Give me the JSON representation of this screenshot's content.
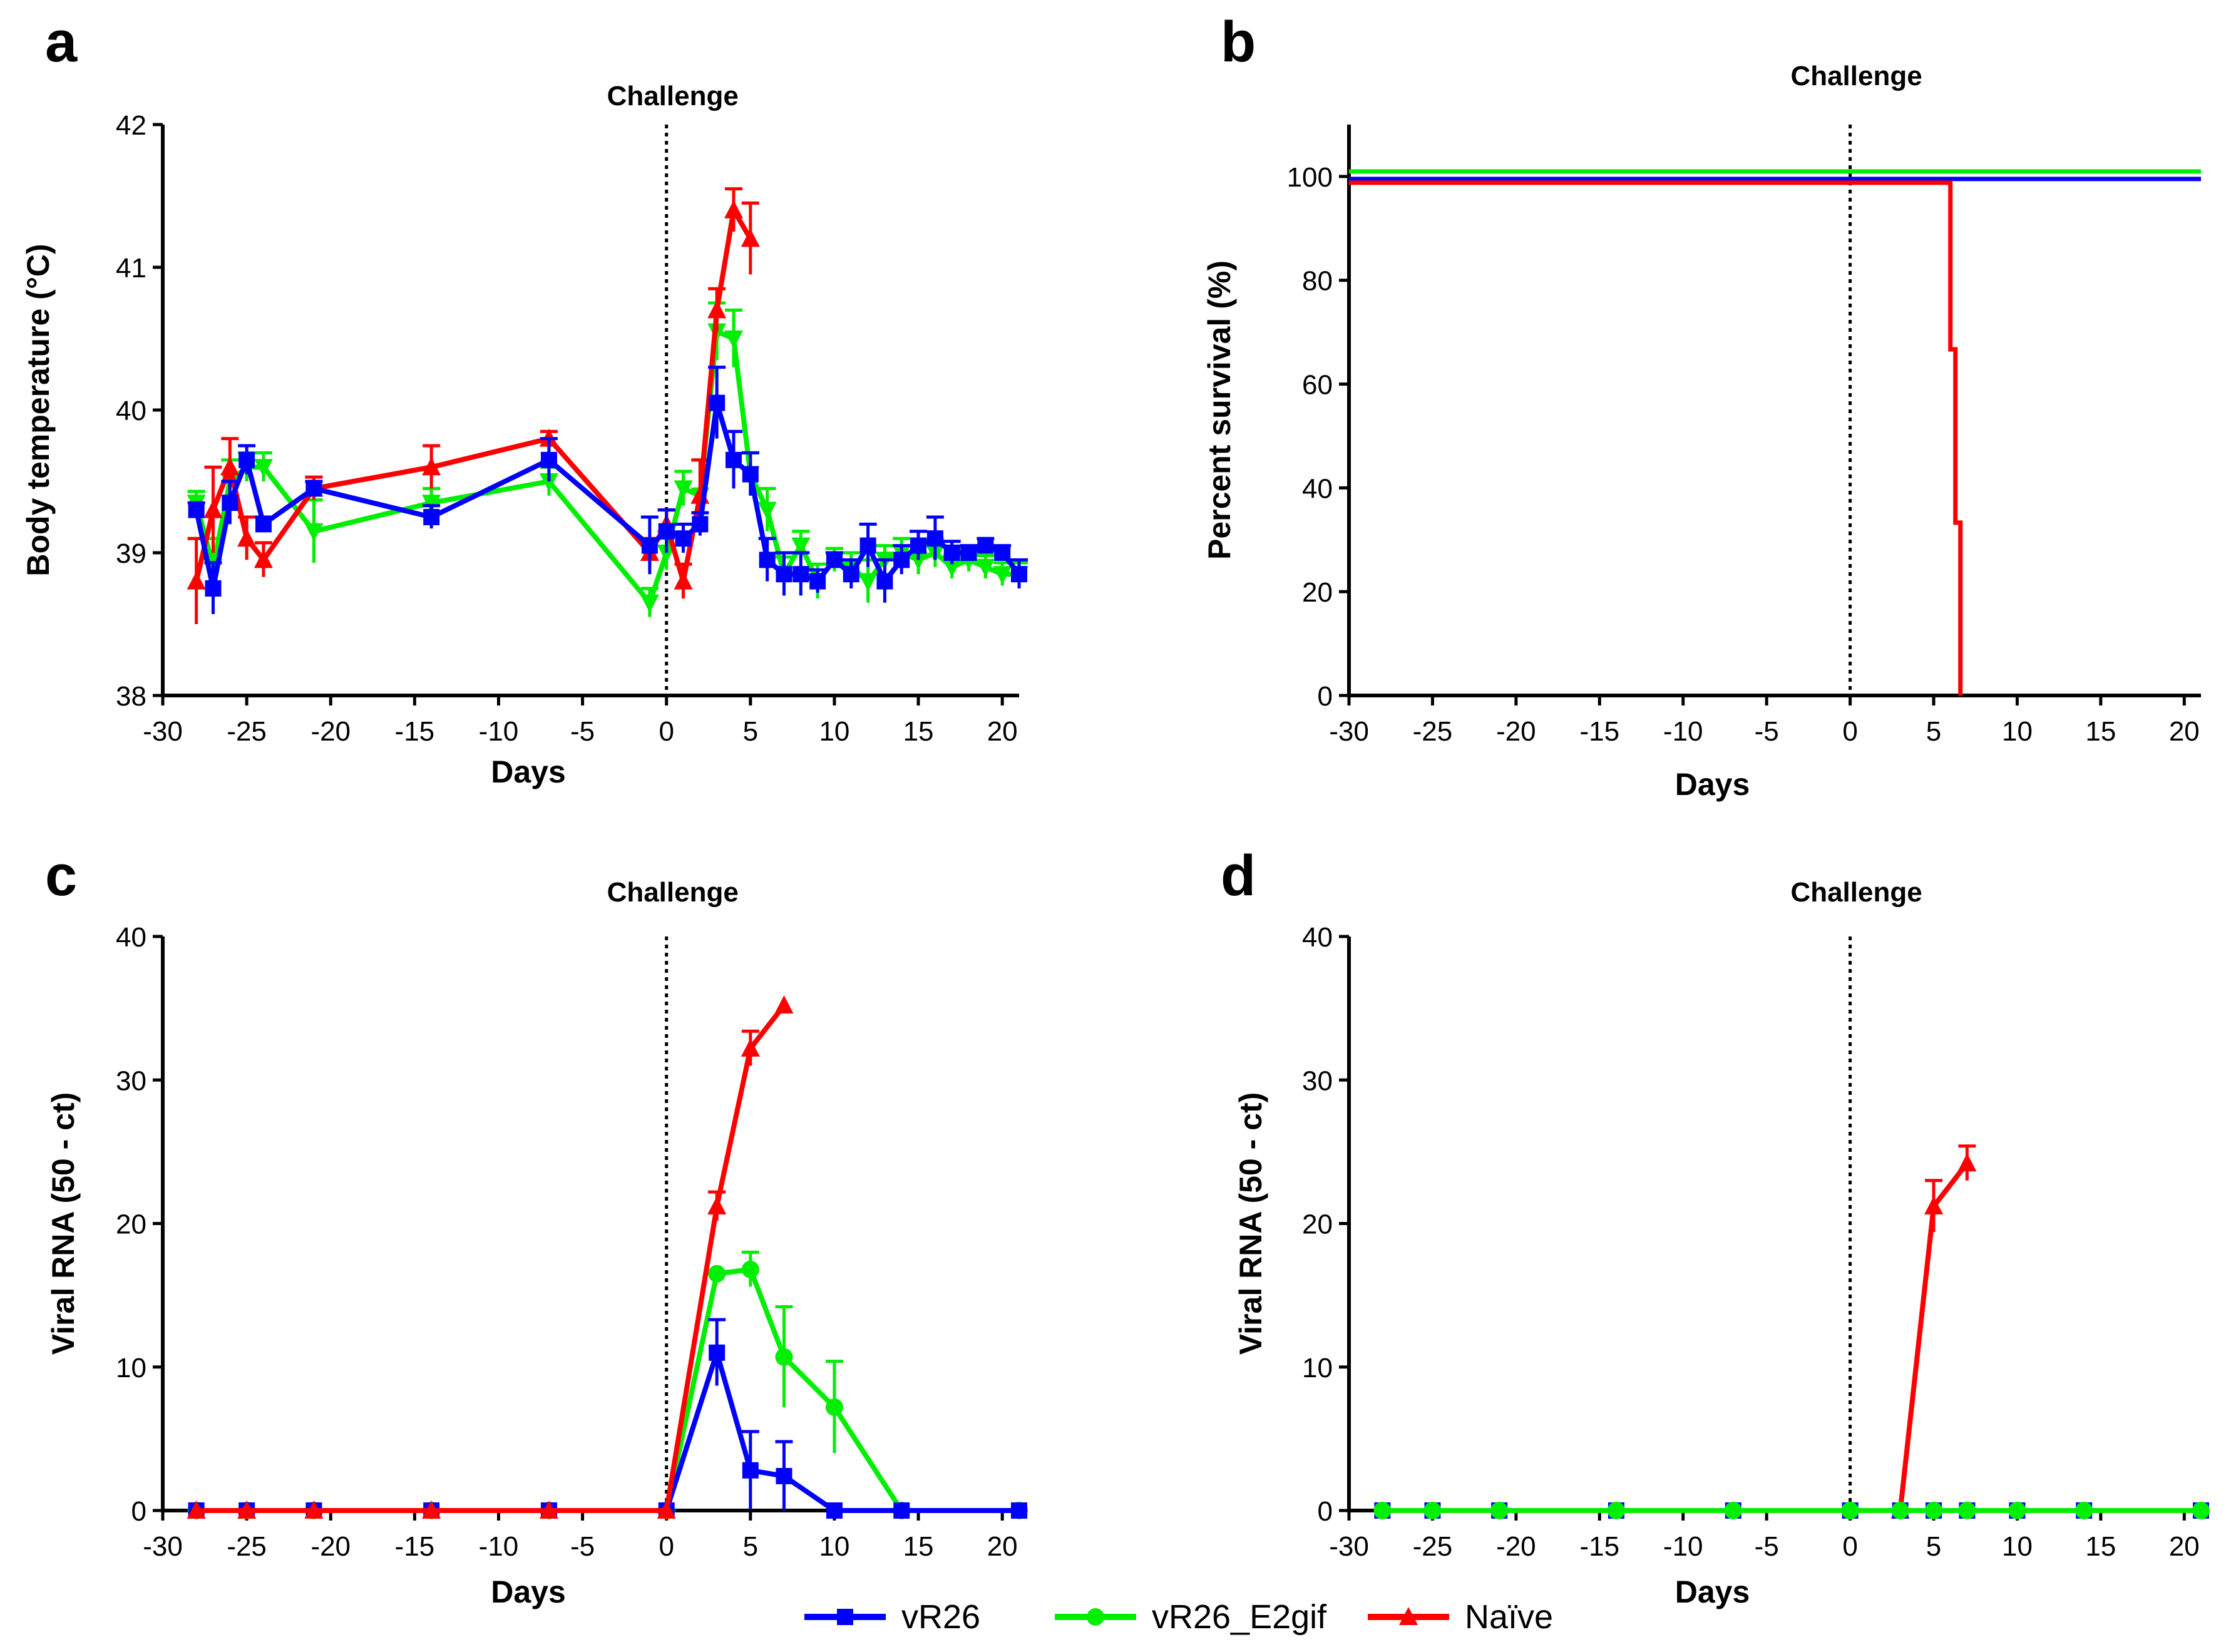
{
  "colors": {
    "vR26": "#0000ff",
    "vR26_E2gif": "#00ee00",
    "Naive": "#ff0000",
    "axis": "#000000"
  },
  "legend": {
    "entries": [
      {
        "key": "vR26",
        "label": "vR26",
        "marker": "square"
      },
      {
        "key": "vR26_E2gif",
        "label": "vR26_E2gif",
        "marker": "circle"
      },
      {
        "key": "Naive",
        "label": "Naïve",
        "marker": "triangle"
      }
    ]
  },
  "chart_data": [
    {
      "id": "a",
      "panel_label": "a",
      "type": "line",
      "title": "",
      "annotation": "Challenge",
      "annotation_x": 0,
      "xlabel": "Days",
      "ylabel": "Body temperature (°C)",
      "xlim": [
        -30,
        21
      ],
      "ylim": [
        38,
        42
      ],
      "xticks": [
        -30,
        -25,
        -20,
        -15,
        -10,
        -5,
        0,
        5,
        10,
        15,
        20
      ],
      "yticks": [
        38,
        39,
        40,
        41,
        42
      ],
      "series": [
        {
          "name": "vR26_E2gif",
          "marker": "inv-triangle",
          "points": [
            {
              "x": -28,
              "y": 39.35,
              "err": 0.08
            },
            {
              "x": -27,
              "y": 38.9,
              "err": 0.2
            },
            {
              "x": -26,
              "y": 39.5,
              "err": 0.15
            },
            {
              "x": -25,
              "y": 39.6,
              "err": 0.1
            },
            {
              "x": -24,
              "y": 39.6,
              "err": 0.1
            },
            {
              "x": -21,
              "y": 39.15,
              "err": 0.22
            },
            {
              "x": -14,
              "y": 39.35,
              "err": 0.1
            },
            {
              "x": -7,
              "y": 39.5,
              "err": 0.1
            },
            {
              "x": -1,
              "y": 38.65,
              "err": 0.1
            },
            {
              "x": 0,
              "y": 39.0,
              "err": 0.12
            },
            {
              "x": 1,
              "y": 39.45,
              "err": 0.12
            },
            {
              "x": 2,
              "y": 39.4,
              "err": 0.25
            },
            {
              "x": 3,
              "y": 40.55,
              "err": 0.2
            },
            {
              "x": 4,
              "y": 40.5,
              "err": 0.2
            },
            {
              "x": 5,
              "y": 39.55,
              "err": 0.15
            },
            {
              "x": 6,
              "y": 39.3,
              "err": 0.15
            },
            {
              "x": 7,
              "y": 38.85,
              "err": 0.12
            },
            {
              "x": 8,
              "y": 39.05,
              "err": 0.1
            },
            {
              "x": 9,
              "y": 38.8,
              "err": 0.12
            },
            {
              "x": 10,
              "y": 38.95,
              "err": 0.08
            },
            {
              "x": 11,
              "y": 38.9,
              "err": 0.1
            },
            {
              "x": 12,
              "y": 38.8,
              "err": 0.15
            },
            {
              "x": 13,
              "y": 38.95,
              "err": 0.1
            },
            {
              "x": 14,
              "y": 39.0,
              "err": 0.1
            },
            {
              "x": 15,
              "y": 38.95,
              "err": 0.1
            },
            {
              "x": 16,
              "y": 39.0,
              "err": 0.1
            },
            {
              "x": 17,
              "y": 38.9,
              "err": 0.08
            },
            {
              "x": 18,
              "y": 38.95,
              "err": 0.08
            },
            {
              "x": 19,
              "y": 38.9,
              "err": 0.08
            },
            {
              "x": 20,
              "y": 38.85,
              "err": 0.08
            },
            {
              "x": 21,
              "y": 38.85,
              "err": 0.08
            }
          ]
        },
        {
          "name": "Naive",
          "marker": "triangle",
          "points": [
            {
              "x": -28,
              "y": 38.8,
              "err": 0.3
            },
            {
              "x": -27,
              "y": 39.3,
              "err": 0.3
            },
            {
              "x": -26,
              "y": 39.6,
              "err": 0.2
            },
            {
              "x": -25,
              "y": 39.1,
              "err": 0.15
            },
            {
              "x": -24,
              "y": 38.95,
              "err": 0.12
            },
            {
              "x": -21,
              "y": 39.45,
              "err": 0.08
            },
            {
              "x": -14,
              "y": 39.6,
              "err": 0.15
            },
            {
              "x": -7,
              "y": 39.8,
              "err": 0.05
            },
            {
              "x": -1,
              "y": 39.0,
              "err": 0.1
            },
            {
              "x": 0,
              "y": 39.2,
              "err": 0.1
            },
            {
              "x": 1,
              "y": 38.8,
              "err": 0.12
            },
            {
              "x": 2,
              "y": 39.4,
              "err": 0.25
            },
            {
              "x": 3,
              "y": 40.7,
              "err": 0.15
            },
            {
              "x": 4,
              "y": 41.4,
              "err": 0.15
            },
            {
              "x": 5,
              "y": 41.2,
              "err": 0.25
            }
          ]
        },
        {
          "name": "vR26",
          "marker": "square",
          "points": [
            {
              "x": -28,
              "y": 39.3,
              "err": 0.05
            },
            {
              "x": -27,
              "y": 38.75,
              "err": 0.18
            },
            {
              "x": -26,
              "y": 39.35,
              "err": 0.15
            },
            {
              "x": -25,
              "y": 39.65,
              "err": 0.1
            },
            {
              "x": -24,
              "y": 39.2,
              "err": 0.05
            },
            {
              "x": -21,
              "y": 39.45,
              "err": 0.05
            },
            {
              "x": -14,
              "y": 39.25,
              "err": 0.08
            },
            {
              "x": -7,
              "y": 39.65,
              "err": 0.15
            },
            {
              "x": -1,
              "y": 39.05,
              "err": 0.2
            },
            {
              "x": 0,
              "y": 39.15,
              "err": 0.15
            },
            {
              "x": 1,
              "y": 39.1,
              "err": 0.1
            },
            {
              "x": 2,
              "y": 39.2,
              "err": 0.08
            },
            {
              "x": 3,
              "y": 40.05,
              "err": 0.25
            },
            {
              "x": 4,
              "y": 39.65,
              "err": 0.2
            },
            {
              "x": 5,
              "y": 39.55,
              "err": 0.15
            },
            {
              "x": 6,
              "y": 38.95,
              "err": 0.15
            },
            {
              "x": 7,
              "y": 38.85,
              "err": 0.15
            },
            {
              "x": 8,
              "y": 38.85,
              "err": 0.15
            },
            {
              "x": 9,
              "y": 38.8,
              "err": 0.08
            },
            {
              "x": 10,
              "y": 38.95,
              "err": 0.05
            },
            {
              "x": 11,
              "y": 38.85,
              "err": 0.1
            },
            {
              "x": 12,
              "y": 39.05,
              "err": 0.15
            },
            {
              "x": 13,
              "y": 38.8,
              "err": 0.15
            },
            {
              "x": 14,
              "y": 38.95,
              "err": 0.1
            },
            {
              "x": 15,
              "y": 39.05,
              "err": 0.1
            },
            {
              "x": 16,
              "y": 39.1,
              "err": 0.15
            },
            {
              "x": 17,
              "y": 39.0,
              "err": 0.08
            },
            {
              "x": 18,
              "y": 39.0,
              "err": 0.05
            },
            {
              "x": 19,
              "y": 39.05,
              "err": 0.05
            },
            {
              "x": 20,
              "y": 39.0,
              "err": 0.05
            },
            {
              "x": 21,
              "y": 38.85,
              "err": 0.1
            }
          ]
        }
      ]
    },
    {
      "id": "b",
      "panel_label": "b",
      "type": "survival",
      "title": "",
      "annotation": "Challenge",
      "annotation_x": 0,
      "xlabel": "Days",
      "ylabel": "Percent survival (%)",
      "xlim": [
        -30,
        21
      ],
      "ylim": [
        0,
        110
      ],
      "xticks": [
        -30,
        -25,
        -20,
        -15,
        -10,
        -5,
        0,
        5,
        10,
        15,
        20
      ],
      "yticks": [
        0,
        20,
        40,
        60,
        80,
        100
      ],
      "series": [
        {
          "name": "vR26",
          "steps": [
            [
              -30,
              100
            ],
            [
              21,
              100
            ]
          ]
        },
        {
          "name": "vR26_E2gif",
          "steps": [
            [
              -30,
              100
            ],
            [
              21,
              100
            ]
          ]
        },
        {
          "name": "Naive",
          "steps": [
            [
              -30,
              100
            ],
            [
              6,
              66.7
            ],
            [
              6.3,
              33.3
            ],
            [
              6.6,
              0
            ]
          ]
        }
      ]
    },
    {
      "id": "c",
      "panel_label": "c",
      "type": "line",
      "title": "",
      "annotation": "Challenge",
      "annotation_x": 0,
      "xlabel": "Days",
      "ylabel": "Viral RNA (50 - ct)",
      "xlim": [
        -30,
        21
      ],
      "ylim": [
        0,
        40
      ],
      "xticks": [
        -30,
        -25,
        -20,
        -15,
        -10,
        -5,
        0,
        5,
        10,
        15,
        20
      ],
      "yticks": [
        0,
        10,
        20,
        30,
        40
      ],
      "series": [
        {
          "name": "vR26_E2gif",
          "marker": "circle",
          "points": [
            {
              "x": -28,
              "y": 0,
              "err": 0
            },
            {
              "x": -25,
              "y": 0,
              "err": 0
            },
            {
              "x": -21,
              "y": 0,
              "err": 0
            },
            {
              "x": -14,
              "y": 0,
              "err": 0
            },
            {
              "x": -7,
              "y": 0,
              "err": 0
            },
            {
              "x": 0,
              "y": 0,
              "err": 0
            },
            {
              "x": 3,
              "y": 16.5,
              "err": 0
            },
            {
              "x": 5,
              "y": 16.8,
              "err": 1.2
            },
            {
              "x": 7,
              "y": 10.7,
              "err": 3.5
            },
            {
              "x": 10,
              "y": 7.2,
              "err": 3.2
            },
            {
              "x": 14,
              "y": 0,
              "err": 0
            },
            {
              "x": 21,
              "y": 0,
              "err": 0
            }
          ]
        },
        {
          "name": "vR26",
          "marker": "square",
          "points": [
            {
              "x": -28,
              "y": 0,
              "err": 0
            },
            {
              "x": -25,
              "y": 0,
              "err": 0
            },
            {
              "x": -21,
              "y": 0,
              "err": 0
            },
            {
              "x": -14,
              "y": 0,
              "err": 0
            },
            {
              "x": -7,
              "y": 0,
              "err": 0
            },
            {
              "x": 0,
              "y": 0,
              "err": 0
            },
            {
              "x": 3,
              "y": 11.0,
              "err": 2.3
            },
            {
              "x": 5,
              "y": 2.8,
              "err": 2.7
            },
            {
              "x": 7,
              "y": 2.4,
              "err": 2.4
            },
            {
              "x": 10,
              "y": 0,
              "err": 0
            },
            {
              "x": 14,
              "y": 0,
              "err": 0
            },
            {
              "x": 21,
              "y": 0,
              "err": 0
            }
          ]
        },
        {
          "name": "Naive",
          "marker": "triangle",
          "points": [
            {
              "x": -28,
              "y": 0,
              "err": 0
            },
            {
              "x": -25,
              "y": 0,
              "err": 0
            },
            {
              "x": -21,
              "y": 0,
              "err": 0
            },
            {
              "x": -14,
              "y": 0,
              "err": 0
            },
            {
              "x": -7,
              "y": 0,
              "err": 0
            },
            {
              "x": 0,
              "y": 0,
              "err": 0
            },
            {
              "x": 3,
              "y": 21.2,
              "err": 1.0
            },
            {
              "x": 5,
              "y": 32.2,
              "err": 1.2
            },
            {
              "x": 7,
              "y": 35.2,
              "err": 0
            }
          ]
        }
      ]
    },
    {
      "id": "d",
      "panel_label": "d",
      "type": "line",
      "title": "",
      "annotation": "Challenge",
      "annotation_x": 0,
      "xlabel": "Days",
      "ylabel": "Viral RNA (50 - ct)",
      "xlim": [
        -30,
        21
      ],
      "ylim": [
        0,
        40
      ],
      "xticks": [
        -30,
        -25,
        -20,
        -15,
        -10,
        -5,
        0,
        5,
        10,
        15,
        20
      ],
      "yticks": [
        0,
        10,
        20,
        30,
        40
      ],
      "series": [
        {
          "name": "Naive",
          "marker": "triangle",
          "points": [
            {
              "x": 3,
              "y": 0,
              "err": 0
            },
            {
              "x": 5,
              "y": 21.2,
              "err": 1.8
            },
            {
              "x": 7,
              "y": 24.2,
              "err": 1.2
            }
          ]
        },
        {
          "name": "vR26",
          "marker": "square",
          "points": [
            {
              "x": -28,
              "y": 0,
              "err": 0
            },
            {
              "x": -25,
              "y": 0,
              "err": 0
            },
            {
              "x": -21,
              "y": 0,
              "err": 0
            },
            {
              "x": -14,
              "y": 0,
              "err": 0
            },
            {
              "x": -7,
              "y": 0,
              "err": 0
            },
            {
              "x": 0,
              "y": 0,
              "err": 0
            },
            {
              "x": 3,
              "y": 0,
              "err": 0
            },
            {
              "x": 5,
              "y": 0,
              "err": 0
            },
            {
              "x": 7,
              "y": 0,
              "err": 0
            },
            {
              "x": 10,
              "y": 0,
              "err": 0
            },
            {
              "x": 14,
              "y": 0,
              "err": 0
            },
            {
              "x": 21,
              "y": 0,
              "err": 0
            }
          ]
        },
        {
          "name": "vR26_E2gif",
          "marker": "circle",
          "points": [
            {
              "x": -28,
              "y": 0,
              "err": 0
            },
            {
              "x": -25,
              "y": 0,
              "err": 0
            },
            {
              "x": -21,
              "y": 0,
              "err": 0
            },
            {
              "x": -14,
              "y": 0,
              "err": 0
            },
            {
              "x": -7,
              "y": 0,
              "err": 0
            },
            {
              "x": 0,
              "y": 0,
              "err": 0
            },
            {
              "x": 3,
              "y": 0,
              "err": 0
            },
            {
              "x": 5,
              "y": 0,
              "err": 0
            },
            {
              "x": 7,
              "y": 0,
              "err": 0
            },
            {
              "x": 10,
              "y": 0,
              "err": 0
            },
            {
              "x": 14,
              "y": 0,
              "err": 0
            },
            {
              "x": 21,
              "y": 0,
              "err": 0
            }
          ]
        }
      ]
    }
  ]
}
